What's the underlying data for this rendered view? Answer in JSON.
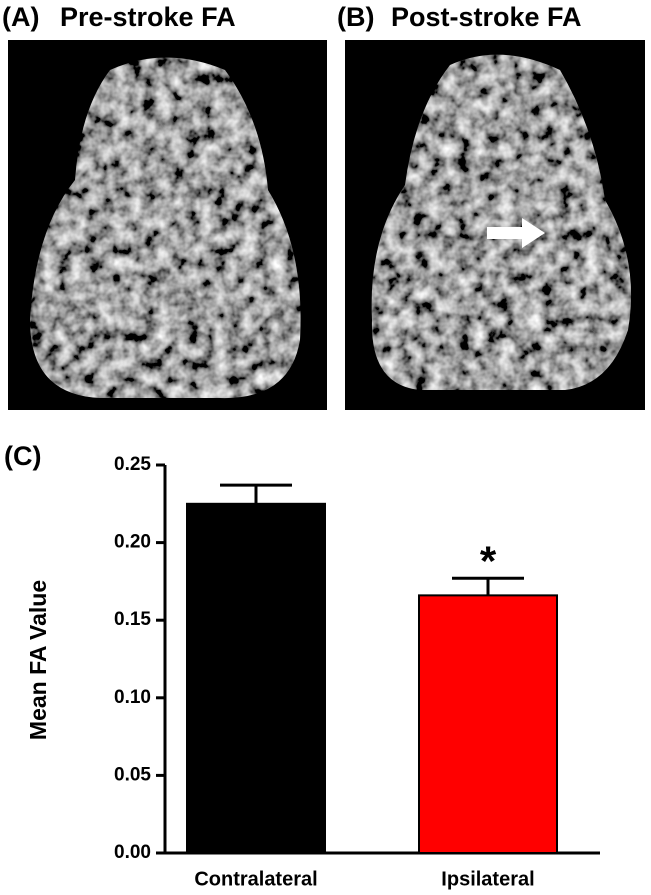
{
  "panels": [
    {
      "label": "(A)",
      "title": "Pre-stroke FA"
    },
    {
      "label": "(B)",
      "title": "Post-stroke FA"
    }
  ],
  "chart_data": {
    "type": "bar",
    "label": "(C)",
    "y_label": "Mean  FA Value",
    "categories": [
      "Contralateral",
      "Ipsilateral"
    ],
    "values": [
      0.225,
      0.166
    ],
    "errors": [
      0.012,
      0.011
    ],
    "colors": [
      "#000000",
      "#ff0000"
    ],
    "annotation": "*",
    "ylim": [
      0,
      0.25
    ],
    "yticks": [
      {
        "value": 0,
        "label": "0.00"
      },
      {
        "value": 0.05,
        "label": "0.05"
      },
      {
        "value": 0.1,
        "label": "0.10"
      },
      {
        "value": 0.15,
        "label": "0.15"
      },
      {
        "value": 0.2,
        "label": "0.20"
      },
      {
        "value": 0.25,
        "label": "0.25"
      }
    ]
  }
}
